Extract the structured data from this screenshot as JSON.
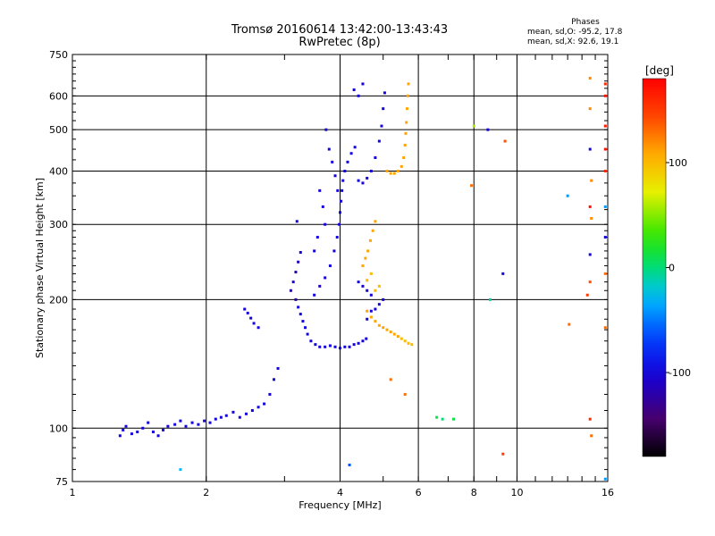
{
  "header": {
    "title": "Tromsø 20160614 13:42:00-13:43:43",
    "subtitle": "RwPretec (8p)"
  },
  "phases_box": {
    "heading": "Phases",
    "o_line": "mean, sd,O: -95.2, 17.8",
    "x_line": "mean, sd,X:  92.6, 19.1"
  },
  "colorbar": {
    "unit_label": "[deg]",
    "tick_labels": [
      "100",
      "0",
      "-100"
    ],
    "tick_values": [
      100,
      0,
      -100
    ],
    "range": [
      -180,
      180
    ]
  },
  "chart_data": {
    "type": "scatter",
    "xlabel": "Frequency [MHz]",
    "ylabel": "Stationary phase Virtual Height [km]",
    "xscale": "log",
    "yscale": "log",
    "xlim": [
      1,
      16
    ],
    "ylim": [
      75,
      750
    ],
    "xticks": [
      1,
      2,
      4,
      6,
      8,
      10,
      16
    ],
    "xtick_labels": [
      "1",
      "2",
      "4",
      "6",
      "8",
      "10",
      "16"
    ],
    "yticks": [
      75,
      100,
      200,
      300,
      400,
      500,
      600,
      750
    ],
    "ytick_labels": [
      "75",
      "100",
      "200",
      "300",
      "400",
      "500",
      "600",
      "750"
    ],
    "grid": true,
    "color_encoding": "phase in degrees",
    "series": [
      {
        "points": [
          [
            1.28,
            96,
            -100
          ],
          [
            1.3,
            99,
            -100
          ],
          [
            1.32,
            101,
            -100
          ],
          [
            1.36,
            97,
            -100
          ],
          [
            1.4,
            98,
            -100
          ],
          [
            1.44,
            100,
            -100
          ],
          [
            1.48,
            103,
            -100
          ],
          [
            1.52,
            98,
            -100
          ],
          [
            1.56,
            96,
            -100
          ],
          [
            1.6,
            99,
            -100
          ],
          [
            1.64,
            101,
            -100
          ],
          [
            1.7,
            102,
            -100
          ],
          [
            1.75,
            104,
            -100
          ],
          [
            1.8,
            101,
            -100
          ],
          [
            1.86,
            103,
            -100
          ],
          [
            1.92,
            102,
            -100
          ],
          [
            1.98,
            104,
            -100
          ],
          [
            2.04,
            103,
            -100
          ],
          [
            2.1,
            105,
            -100
          ],
          [
            2.16,
            106,
            -100
          ],
          [
            2.22,
            107,
            -100
          ],
          [
            2.3,
            109,
            -100
          ],
          [
            2.38,
            106,
            -100
          ],
          [
            2.46,
            108,
            -100
          ],
          [
            2.54,
            110,
            -100
          ],
          [
            2.62,
            112,
            -100
          ],
          [
            2.7,
            114,
            -100
          ],
          [
            2.78,
            120,
            -100
          ],
          [
            2.84,
            130,
            -100
          ],
          [
            2.9,
            138,
            -100
          ],
          [
            2.44,
            190,
            -100
          ],
          [
            2.48,
            186,
            -100
          ],
          [
            2.52,
            181,
            -100
          ],
          [
            2.56,
            176,
            -100
          ],
          [
            2.62,
            172,
            -100
          ],
          [
            3.1,
            210,
            -120
          ],
          [
            3.14,
            220,
            -110
          ],
          [
            3.18,
            232,
            -120
          ],
          [
            3.22,
            245,
            -110
          ],
          [
            3.26,
            258,
            -100
          ],
          [
            3.18,
            200,
            -120
          ],
          [
            3.22,
            192,
            -100
          ],
          [
            3.26,
            185,
            -100
          ],
          [
            3.3,
            178,
            -100
          ],
          [
            3.34,
            172,
            -100
          ],
          [
            3.38,
            166,
            -100
          ],
          [
            3.44,
            160,
            -100
          ],
          [
            3.52,
            157,
            -100
          ],
          [
            3.6,
            155,
            -100
          ],
          [
            3.7,
            155,
            -100
          ],
          [
            3.8,
            156,
            -100
          ],
          [
            3.9,
            155,
            -100
          ],
          [
            4.0,
            154,
            -100
          ],
          [
            4.1,
            155,
            -100
          ],
          [
            4.2,
            155,
            -100
          ],
          [
            4.3,
            157,
            -100
          ],
          [
            4.4,
            158,
            -100
          ],
          [
            4.5,
            160,
            -100
          ],
          [
            4.58,
            162,
            -100
          ],
          [
            3.5,
            205,
            -100
          ],
          [
            3.6,
            215,
            -110
          ],
          [
            3.7,
            225,
            -100
          ],
          [
            3.8,
            240,
            -100
          ],
          [
            3.88,
            260,
            -100
          ],
          [
            3.94,
            280,
            -100
          ],
          [
            3.98,
            300,
            -100
          ],
          [
            4.0,
            320,
            -100
          ],
          [
            4.02,
            340,
            -100
          ],
          [
            4.04,
            360,
            -100
          ],
          [
            4.06,
            380,
            -100
          ],
          [
            4.1,
            400,
            -100
          ],
          [
            4.16,
            420,
            -100
          ],
          [
            4.24,
            440,
            -100
          ],
          [
            4.32,
            455,
            -100
          ],
          [
            4.4,
            380,
            -100
          ],
          [
            4.5,
            375,
            -100
          ],
          [
            4.6,
            385,
            -100
          ],
          [
            4.7,
            400,
            -100
          ],
          [
            4.8,
            430,
            -100
          ],
          [
            4.9,
            470,
            -100
          ],
          [
            4.96,
            510,
            -100
          ],
          [
            5.0,
            560,
            -100
          ],
          [
            5.04,
            610,
            -100
          ],
          [
            3.72,
            500,
            -100
          ],
          [
            3.78,
            450,
            -100
          ],
          [
            3.84,
            420,
            -100
          ],
          [
            3.9,
            390,
            -100
          ],
          [
            3.95,
            360,
            -100
          ],
          [
            3.6,
            360,
            -100
          ],
          [
            3.66,
            330,
            -100
          ],
          [
            3.7,
            300,
            -100
          ],
          [
            3.56,
            280,
            -100
          ],
          [
            3.5,
            260,
            -100
          ],
          [
            3.2,
            305,
            -100
          ],
          [
            4.3,
            620,
            -100
          ],
          [
            4.4,
            600,
            -100
          ],
          [
            4.5,
            640,
            -100
          ],
          [
            4.6,
            180,
            -100
          ],
          [
            4.7,
            188,
            -100
          ],
          [
            4.8,
            190,
            -100
          ],
          [
            4.9,
            195,
            -100
          ],
          [
            5.0,
            200,
            -100
          ],
          [
            4.4,
            220,
            -100
          ],
          [
            4.5,
            215,
            -100
          ],
          [
            4.6,
            210,
            -100
          ],
          [
            4.7,
            205,
            -100
          ],
          [
            4.6,
            188,
            110
          ],
          [
            4.7,
            182,
            110
          ],
          [
            4.8,
            178,
            110
          ],
          [
            4.9,
            174,
            110
          ],
          [
            5.0,
            172,
            110
          ],
          [
            5.1,
            170,
            110
          ],
          [
            5.2,
            168,
            110
          ],
          [
            5.3,
            166,
            110
          ],
          [
            5.4,
            164,
            110
          ],
          [
            5.5,
            162,
            100
          ],
          [
            5.6,
            160,
            100
          ],
          [
            5.7,
            158,
            100
          ],
          [
            5.8,
            157,
            100
          ],
          [
            4.5,
            240,
            110
          ],
          [
            4.56,
            250,
            110
          ],
          [
            4.62,
            260,
            110
          ],
          [
            4.68,
            275,
            110
          ],
          [
            4.74,
            290,
            110
          ],
          [
            4.8,
            305,
            110
          ],
          [
            4.7,
            230,
            100
          ],
          [
            4.6,
            222,
            100
          ],
          [
            4.8,
            210,
            100
          ],
          [
            4.9,
            215,
            100
          ],
          [
            5.3,
            395,
            110
          ],
          [
            5.4,
            400,
            110
          ],
          [
            5.5,
            410,
            110
          ],
          [
            5.56,
            430,
            110
          ],
          [
            5.6,
            460,
            110
          ],
          [
            5.62,
            490,
            110
          ],
          [
            5.64,
            520,
            110
          ],
          [
            5.66,
            560,
            110
          ],
          [
            5.68,
            600,
            110
          ],
          [
            5.7,
            640,
            110
          ],
          [
            5.1,
            400,
            110
          ],
          [
            5.2,
            395,
            110
          ],
          [
            8.0,
            510,
            60
          ],
          [
            7.9,
            370,
            130
          ],
          [
            8.6,
            500,
            -100
          ],
          [
            9.4,
            470,
            140
          ],
          [
            9.3,
            87,
            150
          ],
          [
            8.7,
            200,
            -10
          ],
          [
            9.3,
            230,
            -100
          ],
          [
            6.8,
            105,
            0
          ],
          [
            6.6,
            106,
            10
          ],
          [
            7.2,
            105,
            10
          ],
          [
            5.2,
            130,
            130
          ],
          [
            5.6,
            120,
            130
          ],
          [
            4.2,
            82,
            -60
          ],
          [
            1.75,
            80,
            -30
          ],
          [
            13.0,
            350,
            -40
          ],
          [
            13.1,
            175,
            130
          ],
          [
            14.6,
            660,
            120
          ],
          [
            14.6,
            560,
            120
          ],
          [
            14.6,
            450,
            -100
          ],
          [
            14.7,
            380,
            120
          ],
          [
            14.6,
            330,
            170
          ],
          [
            14.7,
            310,
            120
          ],
          [
            14.6,
            255,
            -100
          ],
          [
            14.6,
            220,
            140
          ],
          [
            14.4,
            205,
            150
          ],
          [
            14.6,
            105,
            160
          ],
          [
            14.7,
            96,
            130
          ],
          [
            15.8,
            600,
            170
          ],
          [
            15.8,
            510,
            170
          ],
          [
            15.8,
            400,
            160
          ],
          [
            15.8,
            330,
            -40
          ],
          [
            15.8,
            280,
            -100
          ],
          [
            15.8,
            230,
            130
          ],
          [
            15.8,
            172,
            130
          ],
          [
            15.8,
            76,
            -40
          ],
          [
            15.8,
            450,
            170
          ],
          [
            15.8,
            640,
            160
          ]
        ]
      }
    ]
  }
}
